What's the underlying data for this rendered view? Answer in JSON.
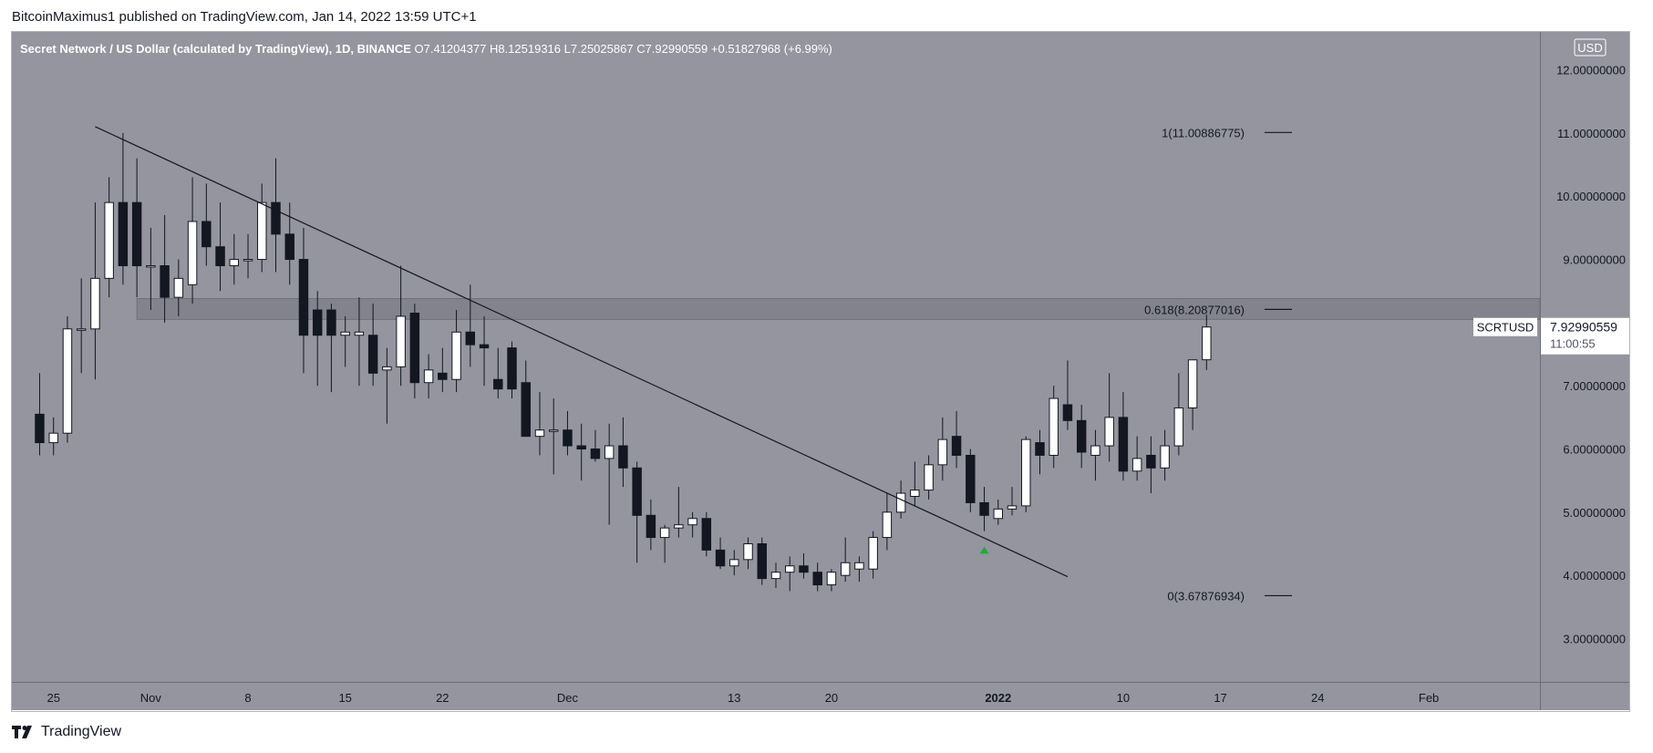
{
  "header": {
    "published_text": "BitcoinMaximus1 published on TradingView.com, Jan 14, 2022 13:59 UTC+1"
  },
  "footer": {
    "brand": "TradingView"
  },
  "colors": {
    "pane_bg": "#94959e",
    "axis_bg": "#94959e",
    "up_candle": "#ffffff",
    "down_candle": "#131722",
    "wick": "#131722",
    "zone": "#7f8088",
    "trendline": "#131722",
    "arrow": "#22ab3b",
    "text": "#131722"
  },
  "chart_data": {
    "type": "candlestick",
    "symbol_line": {
      "name": "Secret Network / US Dollar (calculated by TradingView), 1D, BINANCE",
      "o_label": "O",
      "o": "7.41204377",
      "h_label": "H",
      "h": "8.12519316",
      "l_label": "L",
      "l": "7.25025867",
      "c_label": "C",
      "c": "7.92990559",
      "change": "+0.51827968 (+6.99%)"
    },
    "currency": "USD",
    "ylim": [
      2.3,
      12.6
    ],
    "y_ticks": [
      {
        "value": 3,
        "label": "3.00000000"
      },
      {
        "value": 4,
        "label": "4.00000000"
      },
      {
        "value": 5,
        "label": "5.00000000"
      },
      {
        "value": 6,
        "label": "6.00000000"
      },
      {
        "value": 7,
        "label": "7.00000000"
      },
      {
        "value": 8,
        "label": "8.00000000"
      },
      {
        "value": 9,
        "label": "9.00000000"
      },
      {
        "value": 10,
        "label": "10.00000000"
      },
      {
        "value": 11,
        "label": "11.00000000"
      },
      {
        "value": 12,
        "label": "12.00000000"
      }
    ],
    "x_ticks": [
      {
        "date": "2021-10-25",
        "label": "25",
        "bold": false
      },
      {
        "date": "2021-11-01",
        "label": "Nov",
        "bold": false
      },
      {
        "date": "2021-11-08",
        "label": "8",
        "bold": false
      },
      {
        "date": "2021-11-15",
        "label": "15",
        "bold": false
      },
      {
        "date": "2021-11-22",
        "label": "22",
        "bold": false
      },
      {
        "date": "2021-12-01",
        "label": "Dec",
        "bold": false
      },
      {
        "date": "2021-12-13",
        "label": "13",
        "bold": false
      },
      {
        "date": "2021-12-20",
        "label": "20",
        "bold": false
      },
      {
        "date": "2022-01-01",
        "label": "2022",
        "bold": true
      },
      {
        "date": "2022-01-10",
        "label": "10",
        "bold": false
      },
      {
        "date": "2022-01-17",
        "label": "17",
        "bold": false
      },
      {
        "date": "2022-01-24",
        "label": "24",
        "bold": false
      },
      {
        "date": "2022-02-01",
        "label": "Feb",
        "bold": false
      }
    ],
    "x_range": [
      "2021-10-22",
      "2022-02-09"
    ],
    "candles": [
      {
        "date": "2021-10-24",
        "o": 6.55,
        "h": 7.2,
        "l": 5.9,
        "c": 6.1
      },
      {
        "date": "2021-10-25",
        "o": 6.1,
        "h": 6.5,
        "l": 5.9,
        "c": 6.25
      },
      {
        "date": "2021-10-26",
        "o": 6.25,
        "h": 8.1,
        "l": 6.1,
        "c": 7.9
      },
      {
        "date": "2021-10-27",
        "o": 7.9,
        "h": 8.7,
        "l": 7.2,
        "c": 7.9
      },
      {
        "date": "2021-10-28",
        "o": 7.9,
        "h": 9.9,
        "l": 7.1,
        "c": 8.7
      },
      {
        "date": "2021-10-29",
        "o": 8.7,
        "h": 10.3,
        "l": 8.4,
        "c": 9.9
      },
      {
        "date": "2021-10-30",
        "o": 9.9,
        "h": 11.0,
        "l": 8.6,
        "c": 8.9
      },
      {
        "date": "2021-10-31",
        "o": 9.9,
        "h": 10.6,
        "l": 8.4,
        "c": 8.9
      },
      {
        "date": "2021-11-01",
        "o": 8.9,
        "h": 9.5,
        "l": 8.2,
        "c": 8.9
      },
      {
        "date": "2021-11-02",
        "o": 8.9,
        "h": 9.7,
        "l": 8.0,
        "c": 8.4
      },
      {
        "date": "2021-11-03",
        "o": 8.4,
        "h": 9.0,
        "l": 8.1,
        "c": 8.7
      },
      {
        "date": "2021-11-04",
        "o": 8.6,
        "h": 10.3,
        "l": 8.3,
        "c": 9.6
      },
      {
        "date": "2021-11-05",
        "o": 9.6,
        "h": 10.2,
        "l": 8.9,
        "c": 9.2
      },
      {
        "date": "2021-11-06",
        "o": 9.2,
        "h": 9.9,
        "l": 8.5,
        "c": 8.9
      },
      {
        "date": "2021-11-07",
        "o": 8.9,
        "h": 9.4,
        "l": 8.6,
        "c": 9.0
      },
      {
        "date": "2021-11-08",
        "o": 9.0,
        "h": 9.4,
        "l": 8.7,
        "c": 9.0
      },
      {
        "date": "2021-11-09",
        "o": 9.0,
        "h": 10.2,
        "l": 8.8,
        "c": 9.9
      },
      {
        "date": "2021-11-10",
        "o": 9.9,
        "h": 10.6,
        "l": 8.8,
        "c": 9.4
      },
      {
        "date": "2021-11-11",
        "o": 9.4,
        "h": 9.9,
        "l": 8.6,
        "c": 9.0
      },
      {
        "date": "2021-11-12",
        "o": 9.0,
        "h": 9.5,
        "l": 7.2,
        "c": 7.8
      },
      {
        "date": "2021-11-13",
        "o": 8.2,
        "h": 8.5,
        "l": 7.0,
        "c": 7.8
      },
      {
        "date": "2021-11-14",
        "o": 8.2,
        "h": 8.3,
        "l": 6.9,
        "c": 7.8
      },
      {
        "date": "2021-11-15",
        "o": 7.8,
        "h": 8.1,
        "l": 7.3,
        "c": 7.85
      },
      {
        "date": "2021-11-16",
        "o": 7.8,
        "h": 8.4,
        "l": 7.0,
        "c": 7.85
      },
      {
        "date": "2021-11-17",
        "o": 7.8,
        "h": 8.3,
        "l": 7.0,
        "c": 7.2
      },
      {
        "date": "2021-11-18",
        "o": 7.25,
        "h": 7.6,
        "l": 6.4,
        "c": 7.3
      },
      {
        "date": "2021-11-19",
        "o": 7.3,
        "h": 8.9,
        "l": 7.0,
        "c": 8.1
      },
      {
        "date": "2021-11-20",
        "o": 8.15,
        "h": 8.3,
        "l": 6.8,
        "c": 7.05
      },
      {
        "date": "2021-11-21",
        "o": 7.05,
        "h": 7.5,
        "l": 6.8,
        "c": 7.25
      },
      {
        "date": "2021-11-22",
        "o": 7.2,
        "h": 7.6,
        "l": 6.9,
        "c": 7.1
      },
      {
        "date": "2021-11-23",
        "o": 7.1,
        "h": 8.2,
        "l": 6.9,
        "c": 7.85
      },
      {
        "date": "2021-11-24",
        "o": 7.85,
        "h": 8.6,
        "l": 7.3,
        "c": 7.65
      },
      {
        "date": "2021-11-25",
        "o": 7.65,
        "h": 8.1,
        "l": 7.0,
        "c": 7.6
      },
      {
        "date": "2021-11-26",
        "o": 7.1,
        "h": 7.6,
        "l": 6.8,
        "c": 6.95
      },
      {
        "date": "2021-11-27",
        "o": 7.6,
        "h": 7.7,
        "l": 6.8,
        "c": 6.95
      },
      {
        "date": "2021-11-28",
        "o": 7.05,
        "h": 7.4,
        "l": 6.3,
        "c": 6.2
      },
      {
        "date": "2021-11-29",
        "o": 6.2,
        "h": 6.9,
        "l": 5.9,
        "c": 6.3
      },
      {
        "date": "2021-11-30",
        "o": 6.3,
        "h": 6.8,
        "l": 5.6,
        "c": 6.3
      },
      {
        "date": "2021-12-01",
        "o": 6.3,
        "h": 6.6,
        "l": 5.9,
        "c": 6.05
      },
      {
        "date": "2021-12-02",
        "o": 6.05,
        "h": 6.4,
        "l": 5.5,
        "c": 6.0
      },
      {
        "date": "2021-12-03",
        "o": 6.0,
        "h": 6.3,
        "l": 5.8,
        "c": 5.85
      },
      {
        "date": "2021-12-04",
        "o": 5.85,
        "h": 6.4,
        "l": 4.8,
        "c": 6.05
      },
      {
        "date": "2021-12-05",
        "o": 6.05,
        "h": 6.5,
        "l": 5.4,
        "c": 5.7
      },
      {
        "date": "2021-12-06",
        "o": 5.7,
        "h": 5.8,
        "l": 4.2,
        "c": 4.95
      },
      {
        "date": "2021-12-07",
        "o": 4.95,
        "h": 5.2,
        "l": 4.4,
        "c": 4.6
      },
      {
        "date": "2021-12-08",
        "o": 4.6,
        "h": 4.8,
        "l": 4.2,
        "c": 4.75
      },
      {
        "date": "2021-12-09",
        "o": 4.75,
        "h": 5.4,
        "l": 4.6,
        "c": 4.8
      },
      {
        "date": "2021-12-10",
        "o": 4.8,
        "h": 5.0,
        "l": 4.6,
        "c": 4.9
      },
      {
        "date": "2021-12-11",
        "o": 4.9,
        "h": 5.0,
        "l": 4.3,
        "c": 4.4
      },
      {
        "date": "2021-12-12",
        "o": 4.4,
        "h": 4.6,
        "l": 4.1,
        "c": 4.15
      },
      {
        "date": "2021-12-13",
        "o": 4.15,
        "h": 4.4,
        "l": 4.0,
        "c": 4.25
      },
      {
        "date": "2021-12-14",
        "o": 4.25,
        "h": 4.6,
        "l": 4.1,
        "c": 4.5
      },
      {
        "date": "2021-12-15",
        "o": 4.5,
        "h": 4.6,
        "l": 3.85,
        "c": 3.95
      },
      {
        "date": "2021-12-16",
        "o": 3.95,
        "h": 4.2,
        "l": 3.8,
        "c": 4.05
      },
      {
        "date": "2021-12-17",
        "o": 4.05,
        "h": 4.3,
        "l": 3.75,
        "c": 4.15
      },
      {
        "date": "2021-12-18",
        "o": 4.15,
        "h": 4.35,
        "l": 3.95,
        "c": 4.05
      },
      {
        "date": "2021-12-19",
        "o": 4.05,
        "h": 4.2,
        "l": 3.75,
        "c": 3.85
      },
      {
        "date": "2021-12-20",
        "o": 3.85,
        "h": 4.1,
        "l": 3.75,
        "c": 4.05
      },
      {
        "date": "2021-12-21",
        "o": 4.0,
        "h": 4.6,
        "l": 3.9,
        "c": 4.2
      },
      {
        "date": "2021-12-22",
        "o": 4.1,
        "h": 4.3,
        "l": 3.9,
        "c": 4.2
      },
      {
        "date": "2021-12-23",
        "o": 4.1,
        "h": 4.7,
        "l": 3.95,
        "c": 4.6
      },
      {
        "date": "2021-12-24",
        "o": 4.6,
        "h": 5.3,
        "l": 4.4,
        "c": 5.0
      },
      {
        "date": "2021-12-25",
        "o": 5.0,
        "h": 5.5,
        "l": 4.9,
        "c": 5.3
      },
      {
        "date": "2021-12-26",
        "o": 5.25,
        "h": 5.8,
        "l": 5.1,
        "c": 5.35
      },
      {
        "date": "2021-12-27",
        "o": 5.35,
        "h": 5.9,
        "l": 5.2,
        "c": 5.75
      },
      {
        "date": "2021-12-28",
        "o": 5.75,
        "h": 6.5,
        "l": 5.5,
        "c": 6.15
      },
      {
        "date": "2021-12-29",
        "o": 6.2,
        "h": 6.6,
        "l": 5.7,
        "c": 5.9
      },
      {
        "date": "2021-12-30",
        "o": 5.9,
        "h": 6.0,
        "l": 5.0,
        "c": 5.15
      },
      {
        "date": "2021-12-31",
        "o": 5.15,
        "h": 5.4,
        "l": 4.7,
        "c": 4.95
      },
      {
        "date": "2022-01-01",
        "o": 4.9,
        "h": 5.2,
        "l": 4.8,
        "c": 5.05
      },
      {
        "date": "2022-01-02",
        "o": 5.05,
        "h": 5.4,
        "l": 4.95,
        "c": 5.1
      },
      {
        "date": "2022-01-03",
        "o": 5.1,
        "h": 6.2,
        "l": 5.0,
        "c": 6.15
      },
      {
        "date": "2022-01-04",
        "o": 6.1,
        "h": 6.3,
        "l": 5.6,
        "c": 5.9
      },
      {
        "date": "2022-01-05",
        "o": 5.9,
        "h": 7.0,
        "l": 5.7,
        "c": 6.8
      },
      {
        "date": "2022-01-06",
        "o": 6.7,
        "h": 7.4,
        "l": 6.3,
        "c": 6.45
      },
      {
        "date": "2022-01-07",
        "o": 6.45,
        "h": 6.7,
        "l": 5.7,
        "c": 5.95
      },
      {
        "date": "2022-01-08",
        "o": 5.9,
        "h": 6.3,
        "l": 5.5,
        "c": 6.05
      },
      {
        "date": "2022-01-09",
        "o": 6.05,
        "h": 7.2,
        "l": 5.8,
        "c": 6.5
      },
      {
        "date": "2022-01-10",
        "o": 6.5,
        "h": 6.9,
        "l": 5.5,
        "c": 5.65
      },
      {
        "date": "2022-01-11",
        "o": 5.65,
        "h": 6.2,
        "l": 5.5,
        "c": 5.85
      },
      {
        "date": "2022-01-12",
        "o": 5.9,
        "h": 6.2,
        "l": 5.3,
        "c": 5.7
      },
      {
        "date": "2022-01-13",
        "o": 5.7,
        "h": 6.3,
        "l": 5.5,
        "c": 6.05
      },
      {
        "date": "2022-01-14",
        "o": 6.05,
        "h": 7.2,
        "l": 5.9,
        "c": 6.65
      },
      {
        "date": "2022-01-15",
        "o": 6.65,
        "h": 7.4,
        "l": 6.3,
        "c": 7.41
      },
      {
        "date": "2022-01-16",
        "o": 7.41204377,
        "h": 8.12519316,
        "l": 7.25025867,
        "c": 7.92990559
      }
    ],
    "price_tag": {
      "symbol": "SCRTUSD",
      "price": "7.92990559",
      "countdown": "11:00:55",
      "value": 7.92990559
    },
    "fib_levels": [
      {
        "label": "1(11.00886775)",
        "value": 11.00886775
      },
      {
        "label": "0.618(8.20877016)",
        "value": 8.20877016
      },
      {
        "label": "0(3.67876934)",
        "value": 3.67876934
      }
    ],
    "resistance_zone": {
      "from": 8.05,
      "to": 8.38,
      "start_date": "2021-10-31"
    },
    "trendline": {
      "start": {
        "date": "2021-10-28",
        "value": 11.1
      },
      "end": {
        "date": "2022-01-06",
        "value": 3.98
      }
    },
    "arrow_marker": {
      "date": "2021-12-31",
      "value": 4.4,
      "direction": "up"
    }
  }
}
